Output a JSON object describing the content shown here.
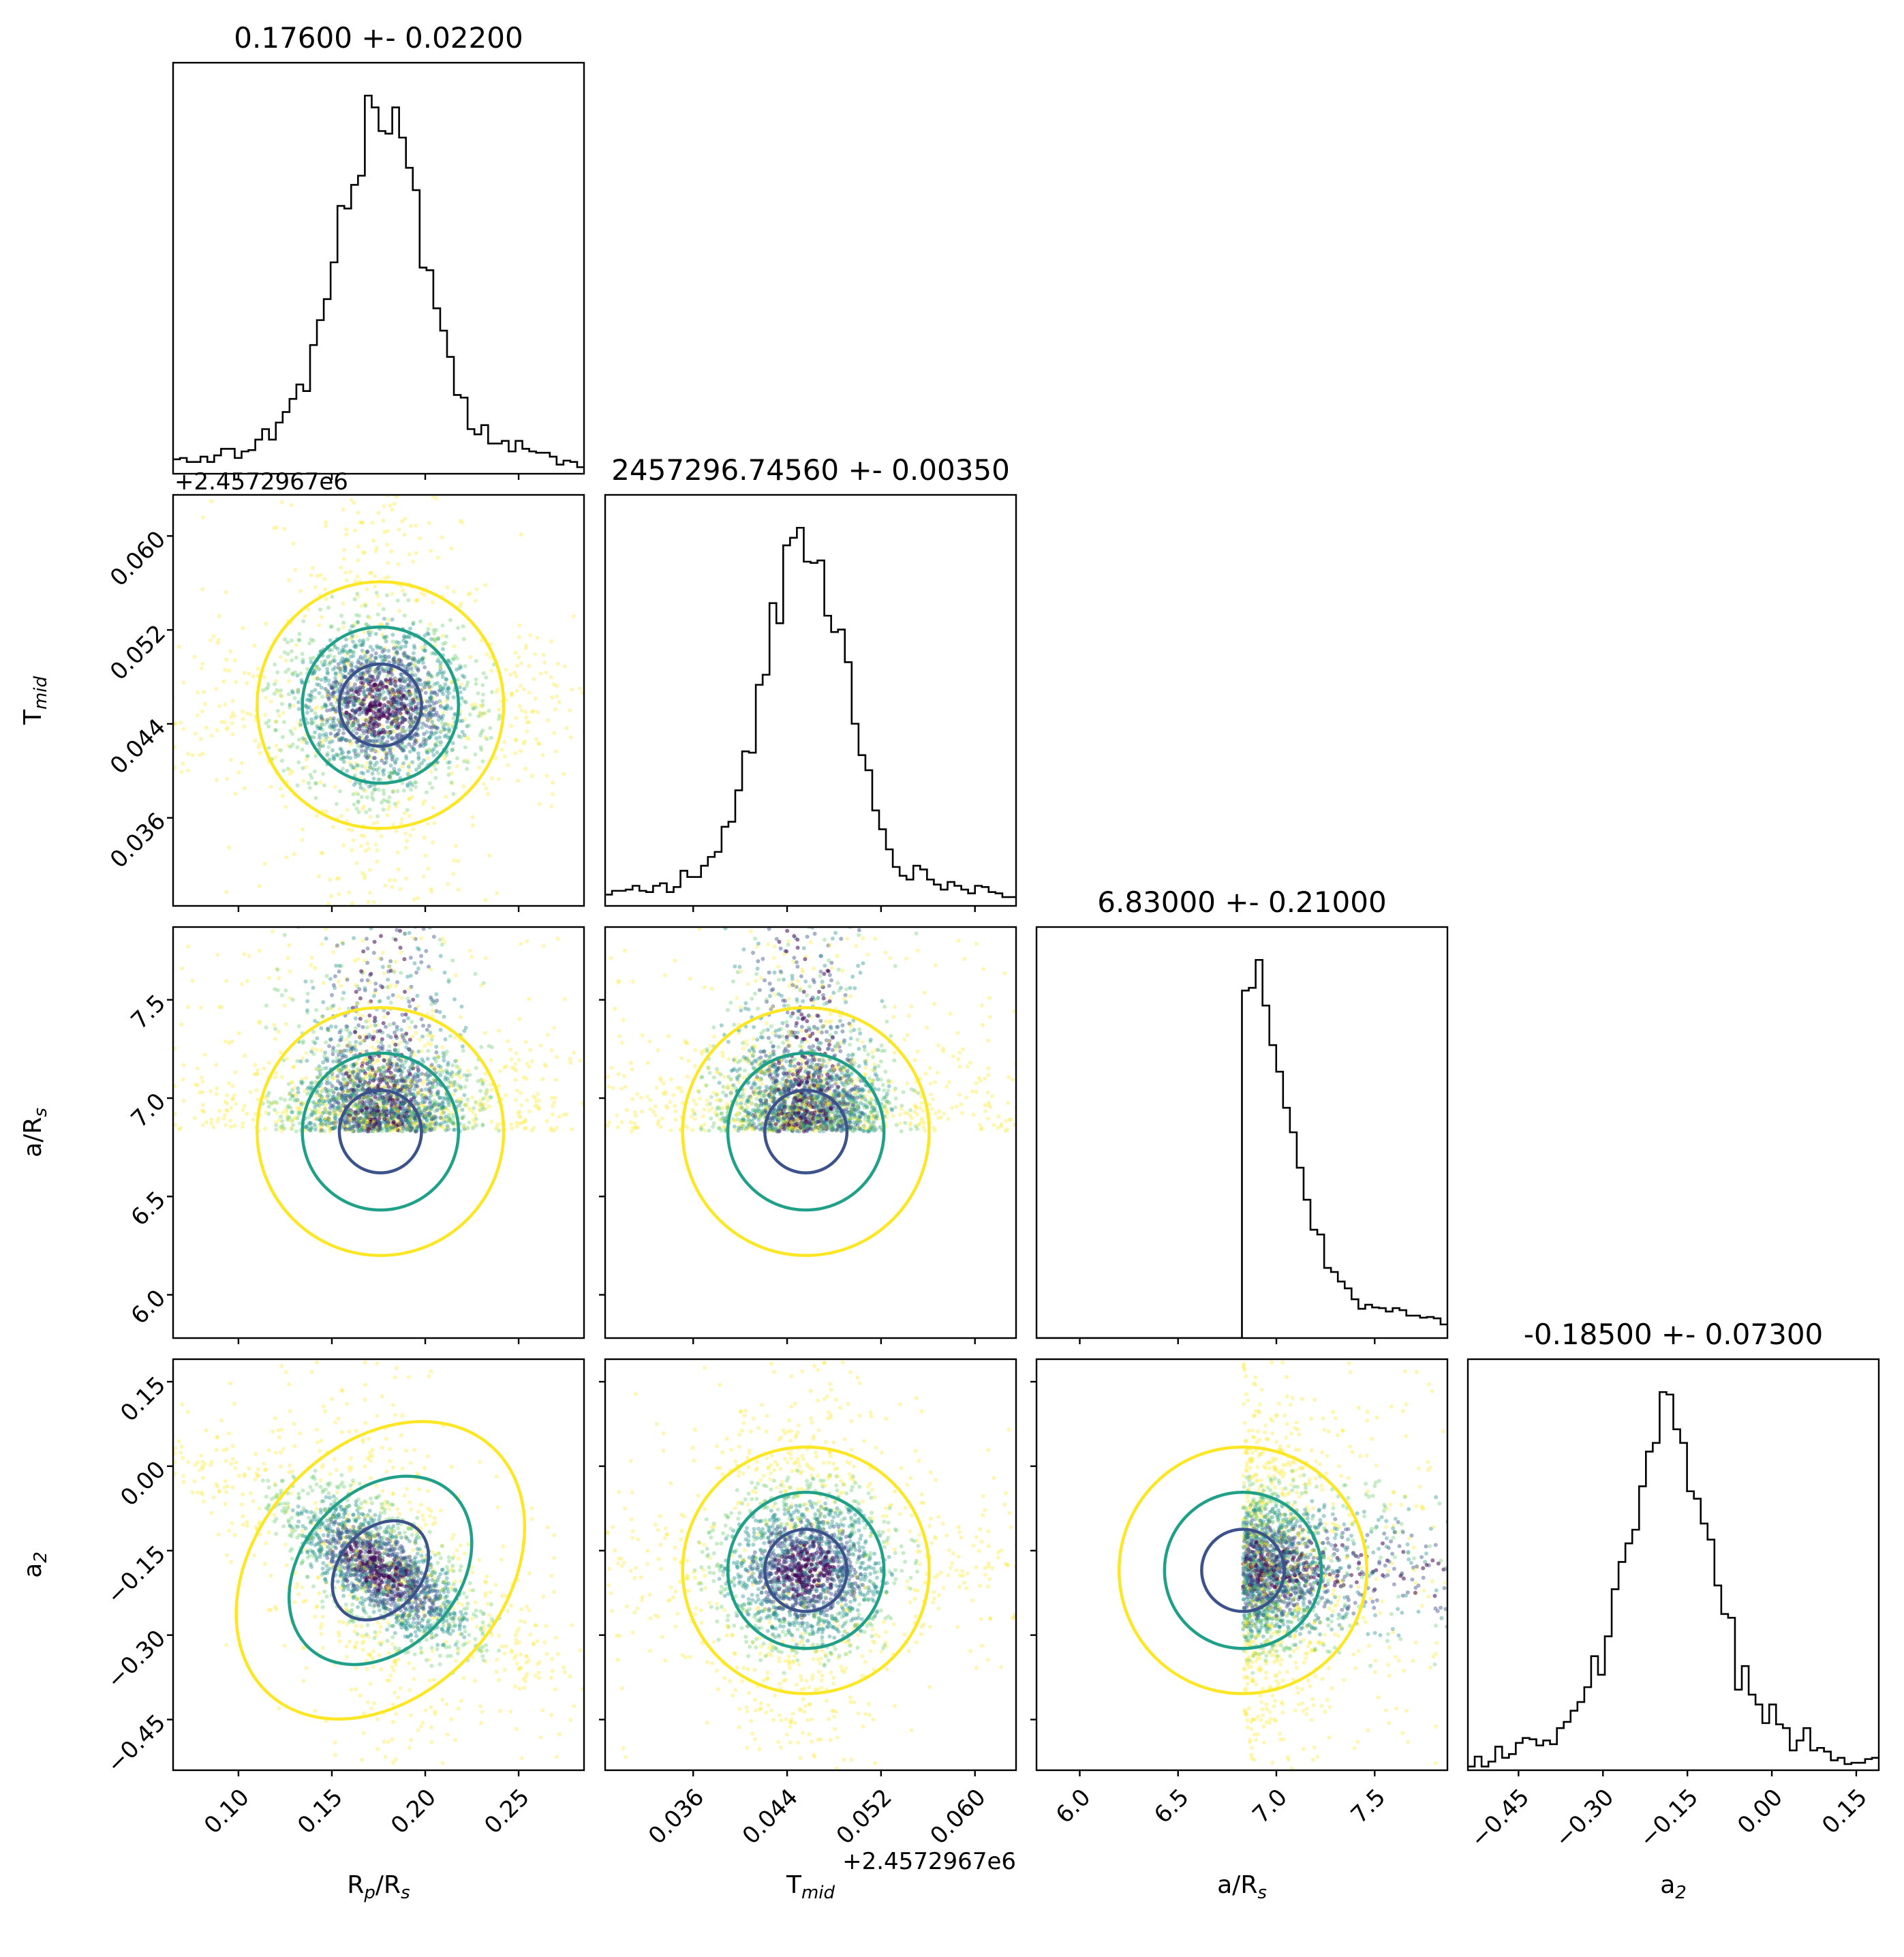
{
  "chart_data": {
    "type": "corner",
    "parameters": [
      {
        "name": "Rp/Rs",
        "label_main": "R",
        "label_sub": "p",
        "label_tail": "/R",
        "label_sub2": "s",
        "range": [
          0.065,
          0.285
        ],
        "ticks": [
          0.1,
          0.15,
          0.2,
          0.25
        ],
        "tick_labels": [
          "0.10",
          "0.15",
          "0.20",
          "0.25"
        ],
        "title": "0.17600 +- 0.02200",
        "median": 0.176,
        "sigma": 0.022,
        "offset_text": ""
      },
      {
        "name": "Tmid",
        "label_main": "T",
        "label_sub": "mid",
        "label_tail": "",
        "label_sub2": "",
        "range": [
          0.0285,
          0.0635
        ],
        "ticks": [
          0.036,
          0.044,
          0.052,
          0.06
        ],
        "tick_labels": [
          "0.036",
          "0.044",
          "0.052",
          "0.060"
        ],
        "title": "2457296.74560 +- 0.00350",
        "median": 0.0456,
        "sigma": 0.0035,
        "offset_text": "+2.4572967e6"
      },
      {
        "name": "a/Rs",
        "label_main": "a/R",
        "label_sub": "s",
        "label_tail": "",
        "label_sub2": "",
        "range": [
          5.78,
          7.87
        ],
        "ticks": [
          6.0,
          6.5,
          7.0,
          7.5
        ],
        "tick_labels": [
          "6.0",
          "6.5",
          "7.0",
          "7.5"
        ],
        "title": "6.83000 +- 0.21000",
        "median": 6.83,
        "sigma": 0.21,
        "offset_text": ""
      },
      {
        "name": "a2",
        "label_main": "a",
        "label_sub": "2",
        "label_tail": "",
        "label_sub2": "",
        "range": [
          -0.54,
          0.19
        ],
        "ticks": [
          -0.45,
          -0.3,
          -0.15,
          0.0,
          0.15
        ],
        "tick_labels": [
          "−0.45",
          "−0.30",
          "−0.15",
          "0.00",
          "0.15"
        ],
        "title": "-0.18500 +- 0.07300",
        "median": -0.185,
        "sigma": 0.073,
        "offset_text": ""
      }
    ],
    "contour_colors": [
      "#fde725",
      "#21a089",
      "#3b528b"
    ],
    "point_colors": [
      "#440154",
      "#3b528b",
      "#21918c",
      "#5ec962",
      "#fde725"
    ],
    "hist_color": "#000000"
  }
}
